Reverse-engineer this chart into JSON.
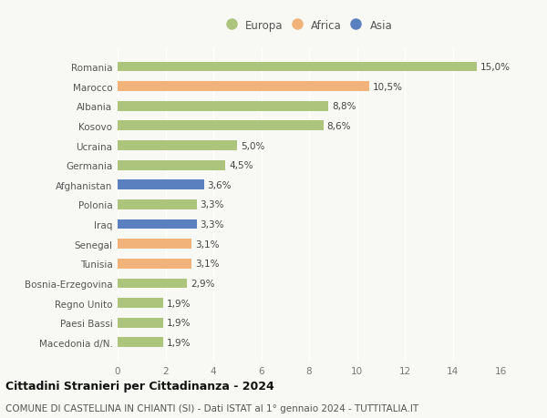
{
  "categories": [
    "Romania",
    "Marocco",
    "Albania",
    "Kosovo",
    "Ucraina",
    "Germania",
    "Afghanistan",
    "Polonia",
    "Iraq",
    "Senegal",
    "Tunisia",
    "Bosnia-Erzegovina",
    "Regno Unito",
    "Paesi Bassi",
    "Macedonia d/N."
  ],
  "values": [
    15.0,
    10.5,
    8.8,
    8.6,
    5.0,
    4.5,
    3.6,
    3.3,
    3.3,
    3.1,
    3.1,
    2.9,
    1.9,
    1.9,
    1.9
  ],
  "labels": [
    "15,0%",
    "10,5%",
    "8,8%",
    "8,6%",
    "5,0%",
    "4,5%",
    "3,6%",
    "3,3%",
    "3,3%",
    "3,1%",
    "3,1%",
    "2,9%",
    "1,9%",
    "1,9%",
    "1,9%"
  ],
  "continents": [
    "Europa",
    "Africa",
    "Europa",
    "Europa",
    "Europa",
    "Europa",
    "Asia",
    "Europa",
    "Asia",
    "Africa",
    "Africa",
    "Europa",
    "Europa",
    "Europa",
    "Europa"
  ],
  "colors": {
    "Europa": "#adc47d",
    "Africa": "#f2b37a",
    "Asia": "#5b80c0"
  },
  "legend_labels": [
    "Europa",
    "Africa",
    "Asia"
  ],
  "xlim": [
    0,
    16
  ],
  "xticks": [
    0,
    2,
    4,
    6,
    8,
    10,
    12,
    14,
    16
  ],
  "title": "Cittadini Stranieri per Cittadinanza - 2024",
  "subtitle": "COMUNE DI CASTELLINA IN CHIANTI (SI) - Dati ISTAT al 1° gennaio 2024 - TUTTITALIA.IT",
  "background_color": "#f8f8f5",
  "bar_height": 0.5,
  "title_fontsize": 9,
  "subtitle_fontsize": 7.5,
  "label_fontsize": 7.5,
  "tick_fontsize": 7.5,
  "legend_fontsize": 8.5
}
